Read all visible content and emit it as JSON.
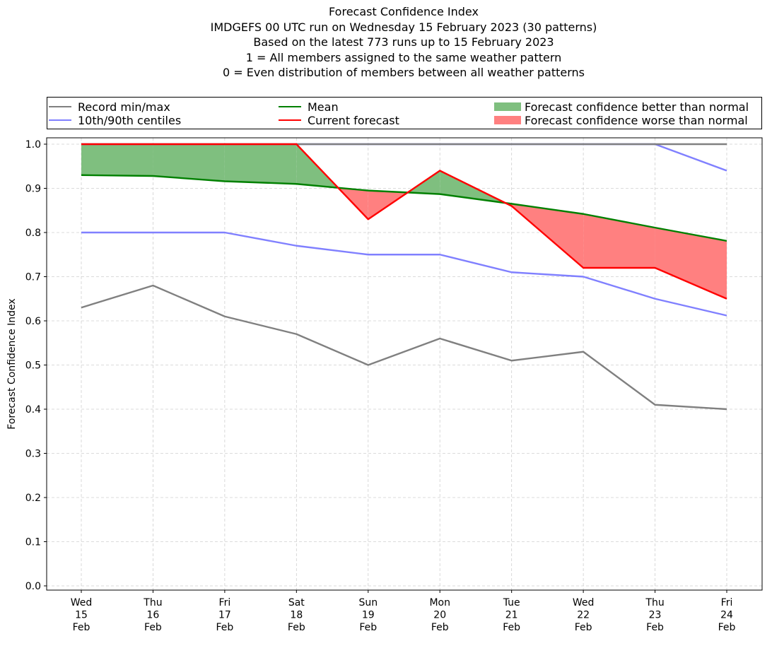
{
  "chart_data": {
    "type": "line",
    "title_lines": [
      "Forecast Confidence Index",
      "IMDGEFS 00 UTC run on Wednesday 15 February 2023 (30 patterns)",
      "Based on the latest 773 runs up to 15 February 2023",
      "1 = All members assigned to the same weather pattern",
      "0 = Even distribution of members between all weather patterns"
    ],
    "ylabel": "Forecast Confidence Index",
    "ylim": [
      0.0,
      1.0
    ],
    "yticks": [
      "0.0",
      "0.1",
      "0.2",
      "0.3",
      "0.4",
      "0.5",
      "0.6",
      "0.7",
      "0.8",
      "0.9",
      "1.0"
    ],
    "categories": [
      [
        "Wed",
        "15",
        "Feb"
      ],
      [
        "Thu",
        "16",
        "Feb"
      ],
      [
        "Fri",
        "17",
        "Feb"
      ],
      [
        "Sat",
        "18",
        "Feb"
      ],
      [
        "Sun",
        "19",
        "Feb"
      ],
      [
        "Mon",
        "20",
        "Feb"
      ],
      [
        "Tue",
        "21",
        "Feb"
      ],
      [
        "Wed",
        "22",
        "Feb"
      ],
      [
        "Thu",
        "23",
        "Feb"
      ],
      [
        "Fri",
        "24",
        "Feb"
      ]
    ],
    "grid": true,
    "legend_position": "top, outside plot",
    "series": [
      {
        "name": "Record min/max",
        "color": "#808080",
        "role": "record_min",
        "values": [
          0.63,
          0.68,
          0.61,
          0.57,
          0.5,
          0.56,
          0.51,
          0.53,
          0.41,
          0.4
        ]
      },
      {
        "name": "Record min/max",
        "color": "#808080",
        "role": "record_max",
        "values": [
          1.0,
          1.0,
          1.0,
          1.0,
          1.0,
          1.0,
          1.0,
          1.0,
          1.0,
          1.0
        ]
      },
      {
        "name": "10th/90th centiles",
        "color": "#8080ff",
        "role": "p10",
        "values": [
          0.8,
          0.8,
          0.8,
          0.77,
          0.75,
          0.75,
          0.71,
          0.7,
          0.65,
          0.612
        ]
      },
      {
        "name": "10th/90th centiles",
        "color": "#8080ff",
        "role": "p90",
        "values": [
          1.0,
          1.0,
          1.0,
          1.0,
          1.0,
          1.0,
          1.0,
          1.0,
          1.0,
          0.94
        ]
      },
      {
        "name": "Mean",
        "color": "#008000",
        "role": "mean",
        "values": [
          0.93,
          0.928,
          0.916,
          0.91,
          0.895,
          0.887,
          0.865,
          0.842,
          0.811,
          0.781
        ]
      },
      {
        "name": "Current forecast",
        "color": "#ff0000",
        "role": "current",
        "values": [
          1.0,
          1.0,
          1.0,
          1.0,
          0.83,
          0.94,
          0.86,
          0.72,
          0.72,
          0.65
        ]
      }
    ],
    "fills": [
      {
        "name": "Forecast confidence better than normal",
        "color": "#7fbf7f"
      },
      {
        "name": "Forecast confidence worse than normal",
        "color": "#ff8080"
      }
    ]
  },
  "legend": {
    "items": [
      {
        "label": "Record min/max",
        "color": "#808080",
        "kind": "line"
      },
      {
        "label": "10th/90th centiles",
        "color": "#8080ff",
        "kind": "line"
      },
      {
        "label": "Mean",
        "color": "#008000",
        "kind": "line"
      },
      {
        "label": "Current forecast",
        "color": "#ff0000",
        "kind": "line"
      },
      {
        "label": "Forecast confidence better than normal",
        "color": "#7fbf7f",
        "kind": "patch"
      },
      {
        "label": "Forecast confidence worse than normal",
        "color": "#ff8080",
        "kind": "patch"
      }
    ]
  }
}
